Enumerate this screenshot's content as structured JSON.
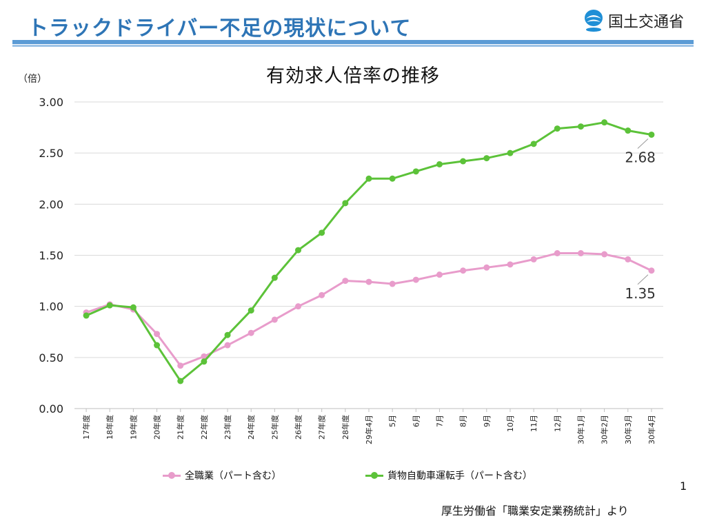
{
  "header": {
    "title": "トラックドライバー不足の現状について",
    "brand_name": "国土交通省",
    "logo_icon": "mlit-logo-icon",
    "title_color": "#2e75b6"
  },
  "page_number": "1",
  "source_note": "厚生労働省「職業安定業務統計」より",
  "chart_data": {
    "type": "line",
    "title": "有効求人倍率の推移",
    "ylabel": "（倍）",
    "xlabel": "",
    "ylim": [
      0,
      3
    ],
    "yticks": [
      "0.00",
      "0.50",
      "1.00",
      "1.50",
      "2.00",
      "2.50",
      "3.00"
    ],
    "grid": true,
    "legend_position": "bottom",
    "categories": [
      "17年度",
      "18年度",
      "19年度",
      "20年度",
      "21年度",
      "22年度",
      "23年度",
      "24年度",
      "25年度",
      "26年度",
      "27年度",
      "28年度",
      "29年4月",
      "5月",
      "6月",
      "7月",
      "8月",
      "9月",
      "10月",
      "11月",
      "12月",
      "30年1月",
      "30年2月",
      "30年3月",
      "30年4月"
    ],
    "series": [
      {
        "name": "全職業（パート含む）",
        "color": "#e89ccb",
        "values": [
          0.94,
          1.02,
          0.97,
          0.73,
          0.42,
          0.51,
          0.62,
          0.74,
          0.87,
          1.0,
          1.11,
          1.25,
          1.24,
          1.22,
          1.26,
          1.31,
          1.35,
          1.38,
          1.41,
          1.46,
          1.52,
          1.52,
          1.51,
          1.46,
          1.35
        ],
        "end_label": "1.35"
      },
      {
        "name": "貨物自動車運転手（パート含む）",
        "color": "#5cc239",
        "values": [
          0.91,
          1.01,
          0.99,
          0.62,
          0.27,
          0.46,
          0.72,
          0.96,
          1.28,
          1.55,
          1.72,
          2.01,
          2.25,
          2.25,
          2.32,
          2.39,
          2.42,
          2.45,
          2.5,
          2.59,
          2.74,
          2.76,
          2.8,
          2.72,
          2.68
        ],
        "end_label": "2.68"
      }
    ]
  }
}
